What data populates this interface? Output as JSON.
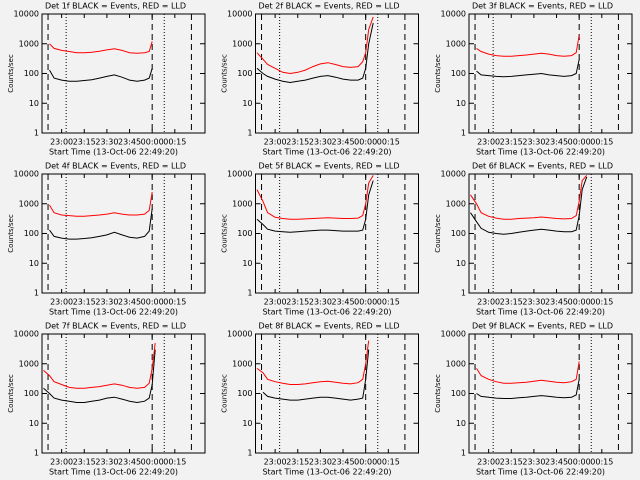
{
  "chart_data": [
    {
      "type": "line",
      "title": "Det 1f BLACK = Events, RED = LLD",
      "xlabel": "Start Time (13-Oct-06 22:49:20)",
      "ylabel": "Counts/sec",
      "log_y": true,
      "x": [
        "22:48",
        "22:52",
        "22:55",
        "23:00",
        "23:05",
        "23:10",
        "23:15",
        "23:20",
        "23:25",
        "23:30",
        "23:35",
        "23:40",
        "23:45",
        "23:50",
        "23:55",
        "23:58",
        "00:00",
        "00:02",
        "00:05"
      ],
      "xlim": [
        "22:47",
        "00:35"
      ],
      "xticks": [
        "23:00",
        "23:15",
        "23:30",
        "23:45",
        "00:00",
        "00:15"
      ],
      "ylim": [
        1,
        10000
      ],
      "yticks": [
        1,
        10,
        100,
        1000,
        10000
      ],
      "vlines": [
        {
          "x": "22:51",
          "style": "dashed"
        },
        {
          "x": "23:03",
          "style": "dotted"
        },
        {
          "x": "00:00",
          "style": "dashed"
        },
        {
          "x": "00:08",
          "style": "dotted"
        },
        {
          "x": "00:26",
          "style": "dashed"
        }
      ],
      "series": [
        {
          "color": "#000000",
          "values": [
            null,
            130,
            70,
            60,
            55,
            55,
            58,
            62,
            70,
            80,
            90,
            75,
            60,
            55,
            60,
            70,
            150,
            null,
            null
          ]
        },
        {
          "color": "#ff0000",
          "values": [
            null,
            1000,
            700,
            600,
            550,
            500,
            500,
            520,
            560,
            620,
            680,
            600,
            500,
            480,
            500,
            550,
            1200,
            null,
            null
          ]
        }
      ]
    },
    {
      "type": "line",
      "title": "Det 2f BLACK = Events, RED = LLD",
      "xlabel": "Start Time (13-Oct-06 22:49:20)",
      "ylabel": "Counts/sec",
      "log_y": true,
      "x": [
        "22:48",
        "22:52",
        "22:55",
        "23:00",
        "23:05",
        "23:10",
        "23:15",
        "23:20",
        "23:25",
        "23:30",
        "23:35",
        "23:40",
        "23:45",
        "23:50",
        "23:55",
        "23:58",
        "00:00",
        "00:02",
        "00:05"
      ],
      "xlim": [
        "22:47",
        "00:35"
      ],
      "xticks": [
        "23:00",
        "23:15",
        "23:30",
        "23:45",
        "00:00",
        "00:15"
      ],
      "ylim": [
        1,
        10000
      ],
      "yticks": [
        1,
        10,
        100,
        1000,
        10000
      ],
      "vlines": [
        {
          "x": "22:51",
          "style": "dashed"
        },
        {
          "x": "23:03",
          "style": "dotted"
        },
        {
          "x": "00:00",
          "style": "dashed"
        },
        {
          "x": "00:08",
          "style": "dotted"
        },
        {
          "x": "00:26",
          "style": "dashed"
        }
      ],
      "series": [
        {
          "color": "#000000",
          "values": [
            150,
            100,
            80,
            65,
            55,
            50,
            55,
            60,
            70,
            80,
            85,
            75,
            65,
            60,
            60,
            70,
            150,
            1000,
            5000
          ]
        },
        {
          "color": "#ff0000",
          "values": [
            500,
            300,
            200,
            150,
            110,
            100,
            110,
            130,
            170,
            210,
            230,
            200,
            170,
            160,
            170,
            250,
            500,
            3000,
            8000
          ]
        }
      ]
    },
    {
      "type": "line",
      "title": "Det 3f BLACK = Events, RED = LLD",
      "xlabel": "Start Time (13-Oct-06 22:49:20)",
      "ylabel": "Counts/sec",
      "log_y": true,
      "x": [
        "22:48",
        "22:52",
        "22:55",
        "23:00",
        "23:05",
        "23:10",
        "23:15",
        "23:20",
        "23:25",
        "23:30",
        "23:35",
        "23:40",
        "23:45",
        "23:50",
        "23:55",
        "23:58",
        "00:00",
        "00:02",
        "00:05"
      ],
      "xlim": [
        "22:47",
        "00:35"
      ],
      "xticks": [
        "23:00",
        "23:15",
        "23:30",
        "23:45",
        "00:00",
        "00:15"
      ],
      "ylim": [
        1,
        10000
      ],
      "yticks": [
        1,
        10,
        100,
        1000,
        10000
      ],
      "vlines": [
        {
          "x": "22:51",
          "style": "dashed"
        },
        {
          "x": "23:03",
          "style": "dotted"
        },
        {
          "x": "00:00",
          "style": "dashed"
        },
        {
          "x": "00:08",
          "style": "dotted"
        },
        {
          "x": "00:26",
          "style": "dashed"
        }
      ],
      "series": [
        {
          "color": "#000000",
          "values": [
            null,
            120,
            90,
            85,
            80,
            78,
            80,
            85,
            90,
            95,
            100,
            90,
            85,
            80,
            85,
            100,
            300,
            null,
            null
          ]
        },
        {
          "color": "#ff0000",
          "values": [
            null,
            700,
            550,
            450,
            400,
            380,
            380,
            400,
            420,
            450,
            480,
            450,
            400,
            380,
            400,
            500,
            2000,
            null,
            null
          ]
        }
      ]
    },
    {
      "type": "line",
      "title": "Det 4f BLACK = Events, RED = LLD",
      "xlabel": "Start Time (13-Oct-06 22:49:20)",
      "ylabel": "Counts/sec",
      "log_y": true,
      "x": [
        "22:48",
        "22:52",
        "22:55",
        "23:00",
        "23:05",
        "23:10",
        "23:15",
        "23:20",
        "23:25",
        "23:30",
        "23:35",
        "23:40",
        "23:45",
        "23:50",
        "23:55",
        "23:58",
        "00:00",
        "00:02",
        "00:05"
      ],
      "xlim": [
        "22:47",
        "00:35"
      ],
      "xticks": [
        "23:00",
        "23:15",
        "23:30",
        "23:45",
        "00:00",
        "00:15"
      ],
      "ylim": [
        1,
        10000
      ],
      "yticks": [
        1,
        10,
        100,
        1000,
        10000
      ],
      "vlines": [
        {
          "x": "22:51",
          "style": "dashed"
        },
        {
          "x": "23:03",
          "style": "dotted"
        },
        {
          "x": "00:00",
          "style": "dashed"
        },
        {
          "x": "00:08",
          "style": "dotted"
        },
        {
          "x": "00:26",
          "style": "dashed"
        }
      ],
      "series": [
        {
          "color": "#000000",
          "values": [
            null,
            130,
            80,
            70,
            65,
            65,
            68,
            72,
            80,
            90,
            110,
            90,
            75,
            70,
            80,
            120,
            700,
            null,
            null
          ]
        },
        {
          "color": "#ff0000",
          "values": [
            null,
            900,
            500,
            420,
            400,
            380,
            380,
            400,
            420,
            450,
            500,
            450,
            420,
            420,
            450,
            600,
            2500,
            null,
            null
          ]
        }
      ]
    },
    {
      "type": "line",
      "title": "Det 5f BLACK = Events, RED = LLD",
      "xlabel": "Start Time (13-Oct-06 22:49:20)",
      "ylabel": "Counts/sec",
      "log_y": true,
      "x": [
        "22:48",
        "22:52",
        "22:55",
        "23:00",
        "23:05",
        "23:10",
        "23:15",
        "23:20",
        "23:25",
        "23:30",
        "23:35",
        "23:40",
        "23:45",
        "23:50",
        "23:55",
        "23:58",
        "00:00",
        "00:02",
        "00:05"
      ],
      "xlim": [
        "22:47",
        "00:35"
      ],
      "xticks": [
        "23:00",
        "23:15",
        "23:30",
        "23:45",
        "00:00",
        "00:15"
      ],
      "ylim": [
        1,
        10000
      ],
      "yticks": [
        1,
        10,
        100,
        1000,
        10000
      ],
      "vlines": [
        {
          "x": "22:51",
          "style": "dashed"
        },
        {
          "x": "23:03",
          "style": "dotted"
        },
        {
          "x": "00:00",
          "style": "dashed"
        },
        {
          "x": "00:08",
          "style": "dotted"
        },
        {
          "x": "00:26",
          "style": "dashed"
        }
      ],
      "series": [
        {
          "color": "#000000",
          "values": [
            300,
            200,
            140,
            120,
            115,
            110,
            115,
            120,
            125,
            130,
            130,
            125,
            120,
            120,
            120,
            130,
            300,
            2000,
            6000
          ]
        },
        {
          "color": "#ff0000",
          "values": [
            3000,
            1200,
            500,
            350,
            320,
            300,
            300,
            310,
            320,
            330,
            340,
            330,
            320,
            320,
            330,
            400,
            1000,
            5000,
            9000
          ]
        }
      ]
    },
    {
      "type": "line",
      "title": "Det 6f BLACK = Events, RED = LLD",
      "xlabel": "Start Time (13-Oct-06 22:49:20)",
      "ylabel": "Counts/sec",
      "log_y": true,
      "x": [
        "22:48",
        "22:52",
        "22:55",
        "23:00",
        "23:05",
        "23:10",
        "23:15",
        "23:20",
        "23:25",
        "23:30",
        "23:35",
        "23:40",
        "23:45",
        "23:50",
        "23:55",
        "23:58",
        "00:00",
        "00:02",
        "00:05"
      ],
      "xlim": [
        "22:47",
        "00:35"
      ],
      "xticks": [
        "23:00",
        "23:15",
        "23:30",
        "23:45",
        "00:00",
        "00:15"
      ],
      "ylim": [
        1,
        10000
      ],
      "yticks": [
        1,
        10,
        100,
        1000,
        10000
      ],
      "vlines": [
        {
          "x": "22:51",
          "style": "dashed"
        },
        {
          "x": "23:03",
          "style": "dotted"
        },
        {
          "x": "00:00",
          "style": "dashed"
        },
        {
          "x": "00:08",
          "style": "dotted"
        },
        {
          "x": "00:26",
          "style": "dashed"
        }
      ],
      "series": [
        {
          "color": "#000000",
          "values": [
            500,
            250,
            150,
            110,
            100,
            95,
            100,
            110,
            120,
            130,
            140,
            130,
            120,
            115,
            115,
            130,
            400,
            3000,
            8000
          ]
        },
        {
          "color": "#ff0000",
          "values": [
            2000,
            1000,
            500,
            380,
            330,
            300,
            300,
            320,
            330,
            340,
            360,
            340,
            320,
            310,
            320,
            400,
            1200,
            6000,
            9000
          ]
        }
      ]
    },
    {
      "type": "line",
      "title": "Det 7f BLACK = Events, RED = LLD",
      "xlabel": "Start Time (13-Oct-06 22:49:20)",
      "ylabel": "Counts/sec",
      "log_y": true,
      "x": [
        "22:48",
        "22:52",
        "22:55",
        "23:00",
        "23:05",
        "23:10",
        "23:15",
        "23:20",
        "23:25",
        "23:30",
        "23:35",
        "23:40",
        "23:45",
        "23:50",
        "23:55",
        "23:58",
        "00:00",
        "00:02",
        "00:05"
      ],
      "xlim": [
        "22:47",
        "00:35"
      ],
      "xticks": [
        "23:00",
        "23:15",
        "23:30",
        "23:45",
        "00:00",
        "00:15"
      ],
      "ylim": [
        1,
        10000
      ],
      "yticks": [
        1,
        10,
        100,
        1000,
        10000
      ],
      "vlines": [
        {
          "x": "22:51",
          "style": "dashed"
        },
        {
          "x": "23:03",
          "style": "dotted"
        },
        {
          "x": "00:00",
          "style": "dashed"
        },
        {
          "x": "00:08",
          "style": "dotted"
        },
        {
          "x": "00:26",
          "style": "dashed"
        }
      ],
      "series": [
        {
          "color": "#000000",
          "values": [
            150,
            100,
            70,
            60,
            55,
            50,
            50,
            55,
            60,
            70,
            75,
            65,
            55,
            50,
            55,
            70,
            200,
            3000,
            null
          ]
        },
        {
          "color": "#ff0000",
          "values": [
            600,
            400,
            250,
            200,
            160,
            150,
            150,
            160,
            170,
            190,
            210,
            190,
            160,
            150,
            160,
            220,
            700,
            5000,
            null
          ]
        }
      ]
    },
    {
      "type": "line",
      "title": "Det 8f BLACK = Events, RED = LLD",
      "xlabel": "Start Time (13-Oct-06 22:49:20)",
      "ylabel": "Counts/sec",
      "log_y": true,
      "x": [
        "22:48",
        "22:52",
        "22:55",
        "23:00",
        "23:05",
        "23:10",
        "23:15",
        "23:20",
        "23:25",
        "23:30",
        "23:35",
        "23:40",
        "23:45",
        "23:50",
        "23:55",
        "23:58",
        "00:00",
        "00:02",
        "00:05"
      ],
      "xlim": [
        "22:47",
        "00:35"
      ],
      "xticks": [
        "23:00",
        "23:15",
        "23:30",
        "23:45",
        "00:00",
        "00:15"
      ],
      "ylim": [
        1,
        10000
      ],
      "yticks": [
        1,
        10,
        100,
        1000,
        10000
      ],
      "vlines": [
        {
          "x": "22:51",
          "style": "dashed"
        },
        {
          "x": "23:03",
          "style": "dotted"
        },
        {
          "x": "00:00",
          "style": "dashed"
        },
        {
          "x": "00:08",
          "style": "dotted"
        },
        {
          "x": "00:26",
          "style": "dashed"
        }
      ],
      "series": [
        {
          "color": "#000000",
          "values": [
            null,
            110,
            80,
            70,
            65,
            60,
            60,
            65,
            70,
            75,
            75,
            70,
            65,
            60,
            65,
            70,
            300,
            3000,
            null
          ]
        },
        {
          "color": "#ff0000",
          "values": [
            700,
            500,
            300,
            250,
            220,
            200,
            200,
            210,
            230,
            250,
            260,
            240,
            220,
            210,
            230,
            300,
            1000,
            6000,
            null
          ]
        }
      ]
    },
    {
      "type": "line",
      "title": "Det 9f BLACK = Events, RED = LLD",
      "xlabel": "Start Time (13-Oct-06 22:49:20)",
      "ylabel": "Counts/sec",
      "log_y": true,
      "x": [
        "22:48",
        "22:52",
        "22:55",
        "23:00",
        "23:05",
        "23:10",
        "23:15",
        "23:20",
        "23:25",
        "23:30",
        "23:35",
        "23:40",
        "23:45",
        "23:50",
        "23:55",
        "23:58",
        "00:00",
        "00:02",
        "00:05"
      ],
      "xlim": [
        "22:47",
        "00:35"
      ],
      "xticks": [
        "23:00",
        "23:15",
        "23:30",
        "23:45",
        "00:00",
        "00:15"
      ],
      "ylim": [
        1,
        10000
      ],
      "yticks": [
        1,
        10,
        100,
        1000,
        10000
      ],
      "vlines": [
        {
          "x": "22:51",
          "style": "dashed"
        },
        {
          "x": "23:03",
          "style": "dotted"
        },
        {
          "x": "00:00",
          "style": "dashed"
        },
        {
          "x": "00:08",
          "style": "dotted"
        },
        {
          "x": "00:26",
          "style": "dashed"
        }
      ],
      "series": [
        {
          "color": "#000000",
          "values": [
            null,
            100,
            80,
            75,
            70,
            68,
            68,
            72,
            75,
            80,
            85,
            80,
            75,
            72,
            75,
            90,
            300,
            null,
            null
          ]
        },
        {
          "color": "#ff0000",
          "values": [
            null,
            700,
            400,
            300,
            250,
            220,
            220,
            230,
            240,
            260,
            280,
            260,
            240,
            230,
            250,
            300,
            1200,
            null,
            null
          ]
        }
      ]
    }
  ]
}
